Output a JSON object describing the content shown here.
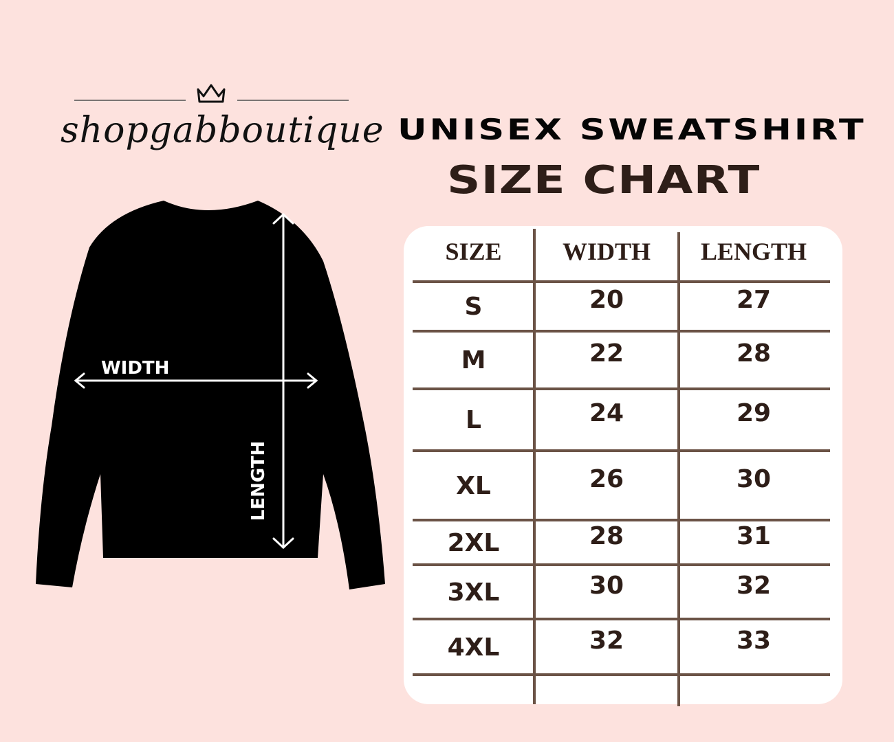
{
  "brand": {
    "name": "shopgabboutique",
    "icon": "crown-icon"
  },
  "title": {
    "line1": "UNISEX SWEATSHIRT",
    "line2": "SIZE CHART"
  },
  "diagram": {
    "width_label": "WIDTH",
    "length_label": "LENGTH"
  },
  "table": {
    "headers": [
      "SIZE",
      "WIDTH",
      "LENGTH"
    ],
    "rows": [
      [
        "S",
        "20",
        "27"
      ],
      [
        "M",
        "22",
        "28"
      ],
      [
        "L",
        "24",
        "29"
      ],
      [
        "XL",
        "26",
        "30"
      ],
      [
        "2XL",
        "28",
        "31"
      ],
      [
        "3XL",
        "30",
        "32"
      ],
      [
        "4XL",
        "32",
        "33"
      ]
    ]
  },
  "colors": {
    "background": "#fde2de",
    "text": "#2e1e18",
    "rule": "#6b5346",
    "garment": "#000000"
  }
}
